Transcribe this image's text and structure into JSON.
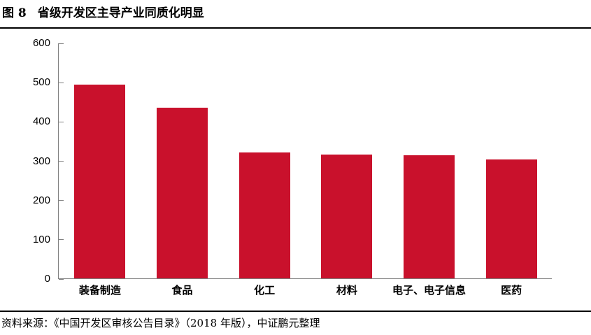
{
  "figure": {
    "label": "图 8",
    "title": "省级开发区主导产业同质化明显"
  },
  "source_note": "资料来源：《中国开发区审核公告目录》（2018 年版），中证鹏元整理",
  "colors": {
    "bar": "#C9112C",
    "axis": "#808080",
    "divider": "#000000",
    "text": "#000000"
  },
  "chart_data": {
    "type": "bar",
    "categories": [
      "装备制造",
      "食品",
      "化工",
      "材料",
      "电子、电子信息",
      "医药"
    ],
    "values": [
      494,
      434,
      321,
      315,
      313,
      303
    ],
    "title": "省级开发区主导产业同质化明显",
    "xlabel": "",
    "ylabel": "",
    "ylim": [
      0,
      600
    ],
    "ytick_interval": 100,
    "ytick_labels": [
      "0",
      "100",
      "200",
      "300",
      "400",
      "500",
      "600"
    ],
    "grid": false,
    "legend": false,
    "bar_color": "#C9112C"
  }
}
